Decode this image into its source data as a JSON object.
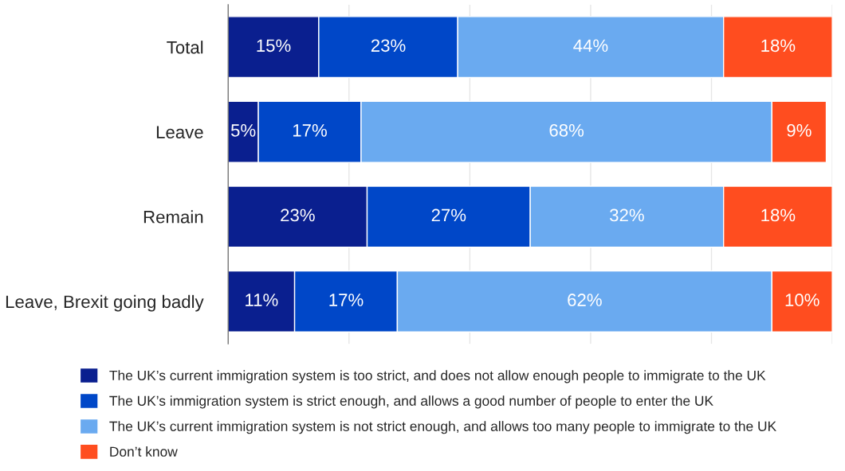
{
  "chart_data": {
    "type": "bar",
    "orientation": "horizontal",
    "stacked": true,
    "categories": [
      "Total",
      "Leave",
      "Remain",
      "Leave, Brexit going badly"
    ],
    "series": [
      {
        "name": "The UK’s current immigration system is too strict, and does not allow enough people to immigrate to the UK",
        "color": "#0a1f8f",
        "values": [
          15,
          5,
          23,
          11
        ],
        "value_labels": [
          "15%",
          "5%",
          "23%",
          "11%"
        ]
      },
      {
        "name": "The UK’s immigration system is strict enough, and allows a good number of people to enter the UK",
        "color": "#0047c8",
        "values": [
          23,
          17,
          27,
          17
        ],
        "value_labels": [
          "23%",
          "17%",
          "27%",
          "17%"
        ]
      },
      {
        "name": "The UK’s current immigration system is not strict enough, and allows too many people to immigrate to the UK",
        "color": "#6aaaf0",
        "values": [
          44,
          68,
          32,
          62
        ],
        "value_labels": [
          "44%",
          "68%",
          "32%",
          "62%"
        ]
      },
      {
        "name": "Don’t know",
        "color": "#ff4d1f",
        "values": [
          18,
          9,
          18,
          10
        ],
        "value_labels": [
          "18%",
          "9%",
          "18%",
          "10%"
        ]
      }
    ],
    "xlim": [
      0,
      100
    ],
    "xticks": [
      {
        "value": 0,
        "label": null
      },
      {
        "value": 20,
        "label": null
      },
      {
        "value": 40,
        "label": null
      },
      {
        "value": 60,
        "label": null
      },
      {
        "value": 80,
        "label": null
      },
      {
        "value": 100,
        "label": null
      }
    ],
    "tick_labels": "y",
    "grid": "x",
    "legend": "bottom"
  }
}
